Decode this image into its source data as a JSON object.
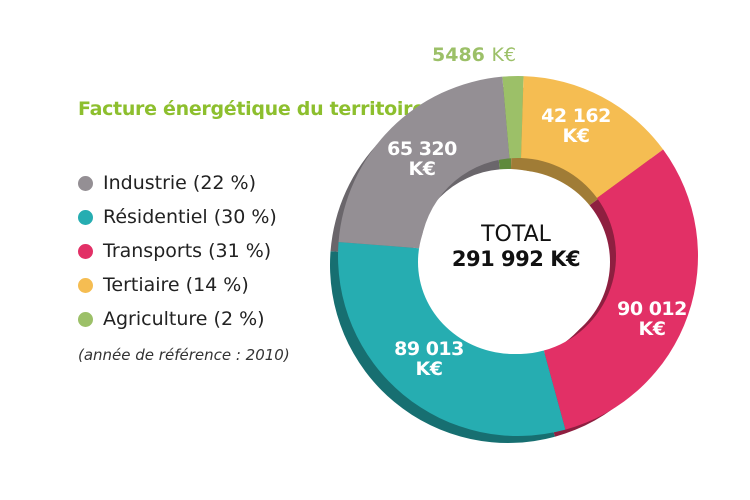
{
  "chart_data": {
    "type": "pie",
    "variant": "donut",
    "title": "Facture énergétique du territoire",
    "title_mark": "*",
    "note": "(année de référence : 2010)",
    "unit": "K€",
    "total_label": "TOTAL",
    "total_value": "291 992 K€",
    "legend_position": "left",
    "series": [
      {
        "name": "Agriculture",
        "legend": "Agriculture (2 %)",
        "value": 5486,
        "value_label": "5486",
        "percent": 2,
        "color": "#9cc068",
        "shade": "#5f8a3c"
      },
      {
        "name": "Tertiaire",
        "legend": "Tertiaire (14 %)",
        "value": 42162,
        "value_label": "42 162",
        "percent": 14,
        "color": "#f5bd52",
        "shade": "#a07c36"
      },
      {
        "name": "Transports",
        "legend": "Transports (31 %)",
        "value": 90012,
        "value_label": "90 012",
        "percent": 31,
        "color": "#e23066",
        "shade": "#8e1f40"
      },
      {
        "name": "Résidentiel",
        "legend": "Résidentiel (30 %)",
        "value": 89013,
        "value_label": "89 013",
        "percent": 30,
        "color": "#26adb1",
        "shade": "#176f71"
      },
      {
        "name": "Industrie",
        "legend": "Industrie (22 %)",
        "value": 65320,
        "value_label": "65 320",
        "percent": 22,
        "color": "#948f94",
        "shade": "#6a666b"
      }
    ],
    "legend_order": [
      4,
      3,
      2,
      1,
      0
    ]
  }
}
